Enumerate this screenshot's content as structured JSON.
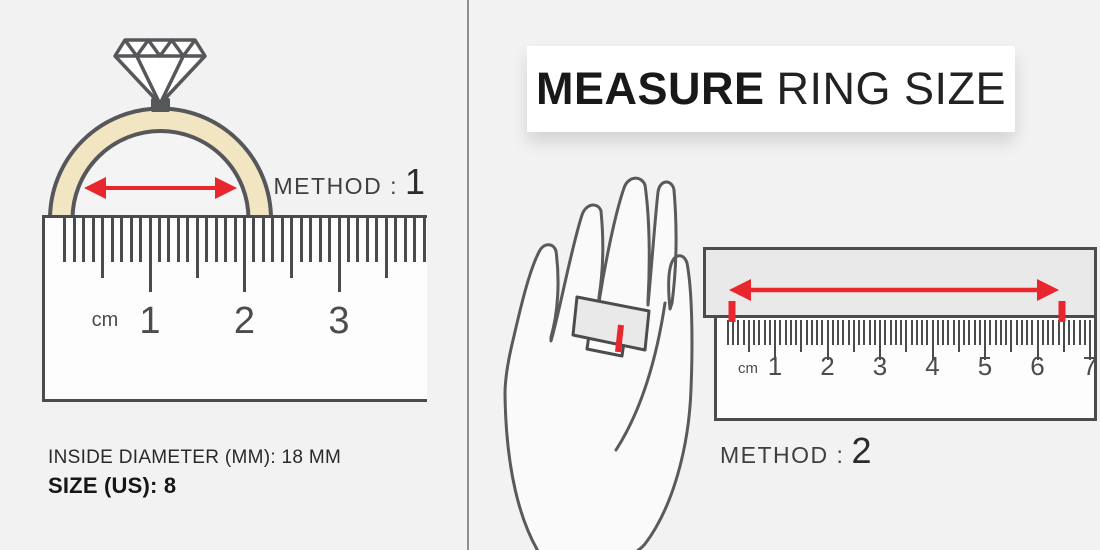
{
  "title": {
    "bold": "MEASURE",
    "regular": "RING SIZE"
  },
  "method1": {
    "label": "METHOD :",
    "number": "1"
  },
  "method2": {
    "label": "METHOD :",
    "number": "2"
  },
  "left_ruler": {
    "unit": "cm",
    "numbers": [
      "1",
      "2",
      "3"
    ]
  },
  "right_ruler": {
    "unit": "cm",
    "numbers": [
      "1",
      "2",
      "3",
      "4",
      "5",
      "6",
      "7"
    ]
  },
  "footer": {
    "line1": "INSIDE DIAMETER (MM): 18 MM",
    "line2": "SIZE (US): 8"
  },
  "colors": {
    "accent_red": "#e8262e",
    "ring_band": "#f2e5c2",
    "outline": "#57585a",
    "strip_gray": "#e9e9ea",
    "background": "#f2f2f3"
  }
}
